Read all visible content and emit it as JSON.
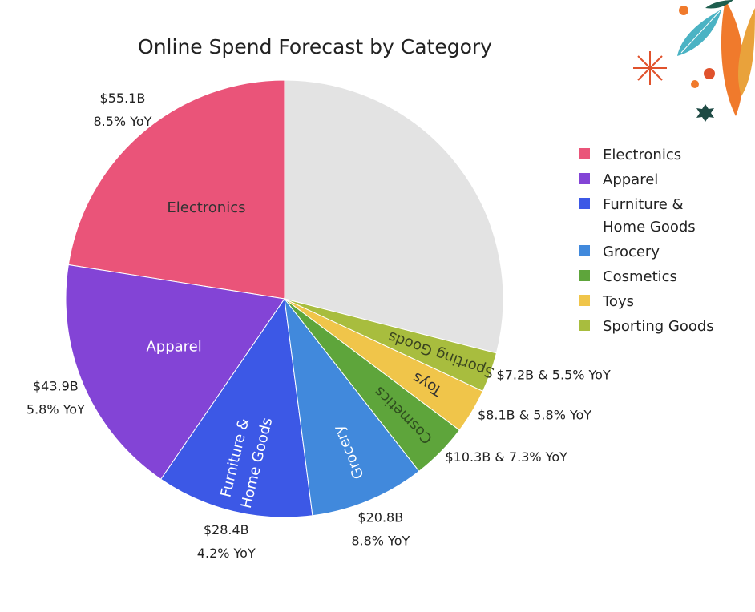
{
  "chart_data": {
    "type": "pie",
    "title": "Online Spend Forecast by Category",
    "series": [
      {
        "name": "Electronics",
        "value": 55.1,
        "value_label": "$55.1B",
        "yoy_label": "8.5% YoY",
        "slice_text": [
          "Electronics"
        ],
        "color": "#ea5479",
        "text_color": "#333333"
      },
      {
        "name": "Apparel",
        "value": 43.9,
        "value_label": "$43.9B",
        "yoy_label": "5.8% YoY",
        "slice_text": [
          "Apparel"
        ],
        "color": "#8344d6",
        "text_color": "#ffffff"
      },
      {
        "name": "Furniture & Home Goods",
        "value": 28.4,
        "value_label": "$28.4B",
        "yoy_label": "4.2% YoY",
        "slice_text": [
          "Furniture &",
          "Home Goods"
        ],
        "legend_text": [
          "Furniture &",
          "Home Goods"
        ],
        "color": "#3c58e6",
        "text_color": "#ffffff"
      },
      {
        "name": "Grocery",
        "value": 20.8,
        "value_label": "$20.8B",
        "yoy_label": "8.8% YoY",
        "slice_text": [
          "Grocery"
        ],
        "color": "#4189dc",
        "text_color": "#ffffff"
      },
      {
        "name": "Cosmetics",
        "value": 10.3,
        "value_label": "$10.3B & 7.3% YoY",
        "slice_text": [
          "Cosmetics"
        ],
        "color": "#5ea53b",
        "text_color": "#2f4f1f"
      },
      {
        "name": "Toys",
        "value": 8.1,
        "value_label": "$8.1B & 5.8% YoY",
        "slice_text": [
          "Toys"
        ],
        "color": "#f0c54a",
        "text_color": "#333333"
      },
      {
        "name": "Sporting Goods",
        "value": 7.2,
        "value_label": "$7.2B & 5.5% YoY",
        "slice_text": [
          "Sporting Goods"
        ],
        "color": "#a8bd3e",
        "text_color": "#3a4420"
      }
    ],
    "remainder": {
      "fraction": 0.29,
      "color": "#e3e3e3"
    },
    "legend_position": "right"
  },
  "decoration": {
    "icon": "leaf-decoration-icon",
    "colors": [
      "#f07a2c",
      "#4bb3c4",
      "#e0522c",
      "#1e5e4e"
    ]
  }
}
